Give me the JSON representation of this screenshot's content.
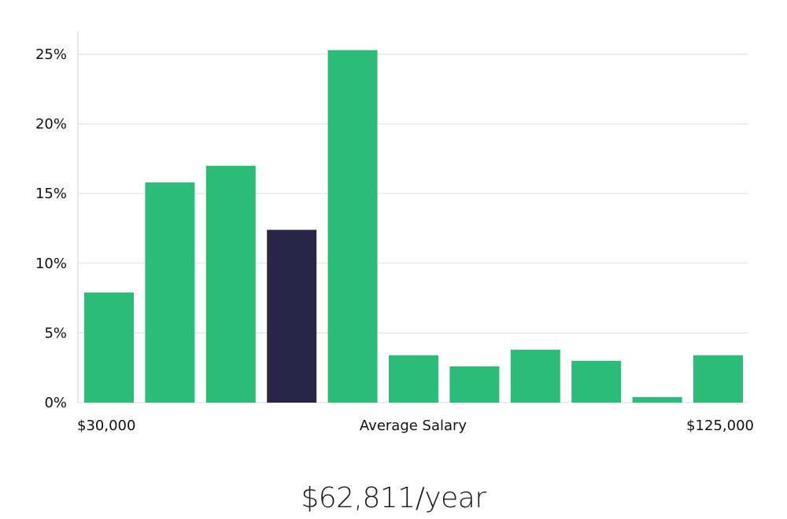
{
  "chart_data": {
    "type": "bar",
    "title": "",
    "xlabel": "Average Salary",
    "ylabel": "",
    "x_range_labels": {
      "min": "$30,000",
      "max": "$125,000"
    },
    "y_ticks": [
      "0%",
      "5%",
      "10%",
      "15%",
      "20%",
      "25%"
    ],
    "ylim": [
      0,
      26.5
    ],
    "values": [
      7.9,
      15.8,
      17.0,
      12.4,
      25.3,
      3.4,
      2.6,
      3.8,
      3.0,
      0.4,
      3.4
    ],
    "highlight_index": 3,
    "colors": {
      "bar": "#2bbd77",
      "highlight": "#29264a",
      "grid": "#e2e2e2"
    }
  },
  "summary": {
    "average_salary": "$62,811/year"
  }
}
